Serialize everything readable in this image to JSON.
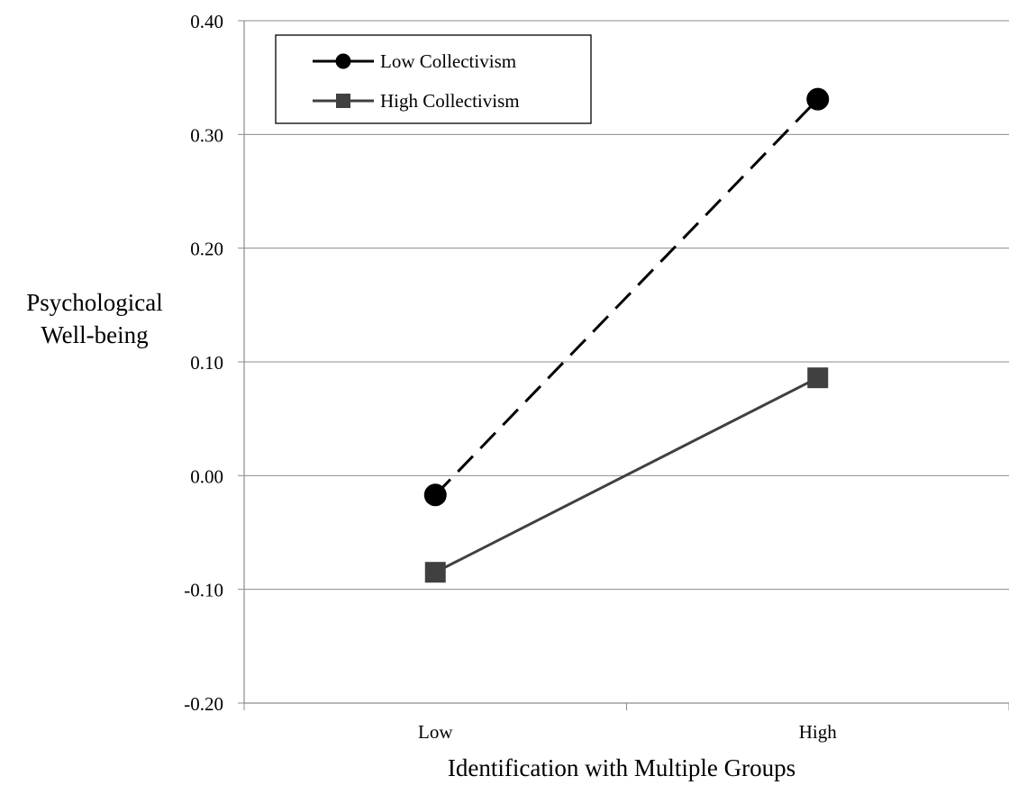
{
  "chart_data": {
    "type": "line",
    "title": "",
    "xlabel": "Identification with Multiple Groups",
    "ylabel": "Psychological\nWell-being",
    "categories": [
      "Low",
      "High"
    ],
    "ylim": [
      -0.2,
      0.4
    ],
    "yticks": [
      "0.40",
      "0.30",
      "0.20",
      "0.10",
      "0.00",
      "-0.10",
      "-0.20"
    ],
    "grid": true,
    "legend_position": "top-left",
    "series": [
      {
        "name": "Low Collectivism",
        "values": [
          -0.017,
          0.331
        ],
        "marker": "circle",
        "line_style": "dashed",
        "color": "#000000"
      },
      {
        "name": "High Collectivism",
        "values": [
          -0.085,
          0.086
        ],
        "marker": "square",
        "line_style": "solid",
        "color": "#404040"
      }
    ]
  }
}
